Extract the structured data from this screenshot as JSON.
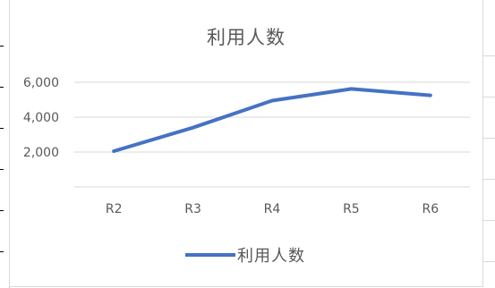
{
  "chart_data": {
    "type": "line",
    "title": "利用人数",
    "categories": [
      "R2",
      "R3",
      "R4",
      "R5",
      "R6"
    ],
    "series": [
      {
        "name": "利用人数",
        "values": [
          2050,
          3400,
          4950,
          5620,
          5250
        ],
        "color": "#4472c4"
      }
    ],
    "y_tick_labels": [
      "6,000",
      "4,000",
      "2,000"
    ],
    "y_ticks": [
      0,
      2000,
      4000,
      6000
    ],
    "ylim": [
      0,
      6000
    ],
    "grid": true,
    "legend": "bottom",
    "xlabel": "",
    "ylabel": ""
  }
}
